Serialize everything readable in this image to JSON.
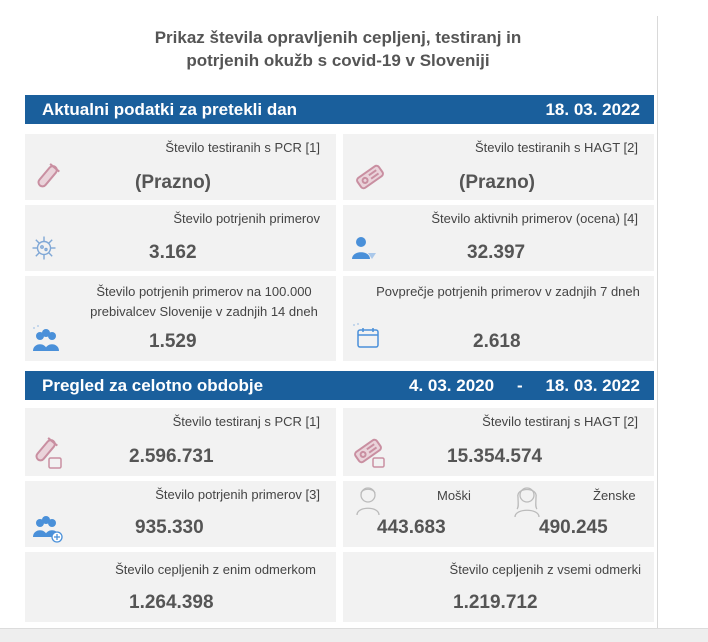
{
  "title_line1": "Prikaz števila opravljenih cepljenj, testiranj in",
  "title_line2": "potrjenih okužb s covid-19 v Sloveniji",
  "section1": {
    "label": "Aktualni podatki za pretekli dan",
    "date": "18. 03. 2022"
  },
  "daily": {
    "pcr_label": "Število testiranih s PCR [1]",
    "pcr_value": "(Prazno)",
    "hagt_label": "Število testiranih s HAGT [2]",
    "hagt_value": "(Prazno)",
    "confirmed_label": "Število potrjenih primerov",
    "confirmed_value": "3.162",
    "active_label": "Število aktivnih primerov (ocena) [4]",
    "active_value": "32.397",
    "per100k_label": "Število potrjenih primerov na 100.000 prebivalcev Slovenije v zadnjih 14 dneh",
    "per100k_value": "1.529",
    "avg7_label": "Povprečje potrjenih primerov v zadnjih 7 dneh",
    "avg7_value": "2.618"
  },
  "section2": {
    "label": "Pregled za celotno obdobje",
    "date_from": "4. 03. 2020",
    "dash": "-",
    "date_to": "18. 03. 2022"
  },
  "total": {
    "pcr_label": "Število testiranj s PCR [1]",
    "pcr_value": "2.596.731",
    "hagt_label": "Število testiranj s HAGT [2]",
    "hagt_value": "15.354.574",
    "confirmed_label": "Število potrjenih primerov [3]",
    "confirmed_value": "935.330",
    "male_label": "Moški",
    "male_value": "443.683",
    "female_label": "Ženske",
    "female_value": "490.245",
    "vacc_one_label": "Število cepljenih z enim odmerkom",
    "vacc_one_value": "1.264.398",
    "vacc_all_label": "Število cepljenih z vsemi odmerki",
    "vacc_all_value": "1.219.712"
  },
  "colors": {
    "header_bg": "#1a5f9c",
    "card_bg": "#f2f2f2",
    "icon_pink": "#c98fa1",
    "icon_blue": "#4a90d9"
  }
}
